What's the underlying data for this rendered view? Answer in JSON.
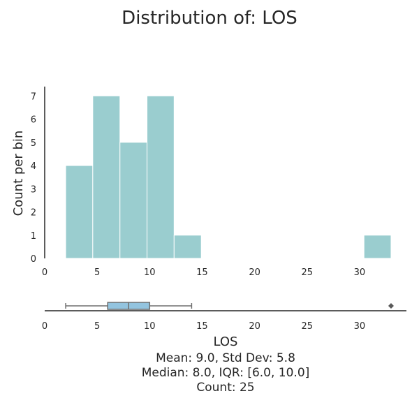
{
  "chart_data": [
    {
      "type": "bar",
      "title": "Distribution of: LOS",
      "xlabel": "",
      "ylabel": "Count per bin",
      "xlim": [
        0,
        34
      ],
      "ylim": [
        0,
        7.4
      ],
      "x_ticks": [
        0,
        5,
        10,
        15,
        20,
        25,
        30
      ],
      "y_ticks": [
        0,
        1,
        2,
        3,
        4,
        5,
        6,
        7
      ],
      "bins": [
        {
          "start": 2.0,
          "end": 4.58,
          "count": 4
        },
        {
          "start": 4.58,
          "end": 7.17,
          "count": 7
        },
        {
          "start": 7.17,
          "end": 9.75,
          "count": 5
        },
        {
          "start": 9.75,
          "end": 12.33,
          "count": 7
        },
        {
          "start": 12.33,
          "end": 14.92,
          "count": 1
        },
        {
          "start": 30.42,
          "end": 33.0,
          "count": 1
        }
      ],
      "bar_color": "#9acdcf",
      "grid": false
    },
    {
      "type": "boxplot",
      "xlabel": "LOS",
      "xlim": [
        0,
        34
      ],
      "x_ticks": [
        0,
        5,
        10,
        15,
        20,
        25,
        30
      ],
      "whisker_low": 2.0,
      "q1": 6.0,
      "median": 8.0,
      "q3": 10.0,
      "whisker_high": 14.0,
      "outliers": [
        33.0
      ],
      "box_color": "#93c4df",
      "line_color": "#6e6e6e",
      "grid": false
    }
  ],
  "stats": {
    "line1": "Mean: 9.0, Std Dev: 5.8",
    "line2": "Median: 8.0, IQR: [6.0, 10.0]",
    "line3": "Count: 25"
  }
}
